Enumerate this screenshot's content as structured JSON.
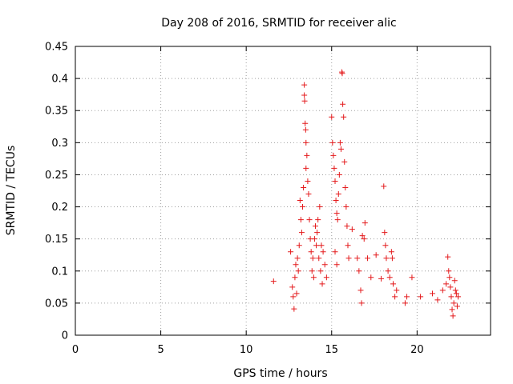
{
  "chart_data": {
    "type": "scatter",
    "title": "Day 208 of 2016, SRMTID for receiver alic",
    "xlabel": "GPS time / hours",
    "ylabel": "SRMTID / TECUs",
    "xlim": [
      0,
      24.3
    ],
    "ylim": [
      0,
      0.45
    ],
    "x_ticks": [
      0,
      5,
      10,
      15,
      20
    ],
    "x_tick_labels": [
      "0",
      "5",
      "10",
      "15",
      "20"
    ],
    "y_ticks": [
      0,
      0.05,
      0.1,
      0.15,
      0.2,
      0.25,
      0.3,
      0.35,
      0.4,
      0.45
    ],
    "y_tick_labels": [
      "0",
      "0.05",
      "0.1",
      "0.15",
      "0.2",
      "0.25",
      "0.3",
      "0.35",
      "0.4",
      "0.45"
    ],
    "grid": true,
    "marker": "+",
    "series": [
      {
        "name": "SRMTID",
        "color": "#e41a1c",
        "points": [
          [
            11.6,
            0.084
          ],
          [
            12.6,
            0.13
          ],
          [
            12.7,
            0.075
          ],
          [
            12.75,
            0.06
          ],
          [
            12.8,
            0.041
          ],
          [
            12.85,
            0.09
          ],
          [
            12.9,
            0.11
          ],
          [
            12.95,
            0.065
          ],
          [
            13.0,
            0.12
          ],
          [
            13.05,
            0.1
          ],
          [
            13.1,
            0.14
          ],
          [
            13.15,
            0.21
          ],
          [
            13.2,
            0.18
          ],
          [
            13.25,
            0.16
          ],
          [
            13.3,
            0.2
          ],
          [
            13.35,
            0.23
          ],
          [
            13.4,
            0.39
          ],
          [
            13.4,
            0.374
          ],
          [
            13.42,
            0.365
          ],
          [
            13.45,
            0.33
          ],
          [
            13.48,
            0.32
          ],
          [
            13.5,
            0.3
          ],
          [
            13.55,
            0.28
          ],
          [
            13.5,
            0.26
          ],
          [
            13.6,
            0.24
          ],
          [
            13.65,
            0.22
          ],
          [
            13.7,
            0.18
          ],
          [
            13.75,
            0.15
          ],
          [
            13.8,
            0.13
          ],
          [
            13.85,
            0.1
          ],
          [
            13.9,
            0.12
          ],
          [
            13.95,
            0.09
          ],
          [
            14.0,
            0.15
          ],
          [
            14.05,
            0.17
          ],
          [
            14.1,
            0.14
          ],
          [
            14.15,
            0.16
          ],
          [
            14.2,
            0.18
          ],
          [
            14.25,
            0.12
          ],
          [
            14.3,
            0.2
          ],
          [
            14.35,
            0.1
          ],
          [
            14.4,
            0.14
          ],
          [
            14.45,
            0.08
          ],
          [
            14.5,
            0.13
          ],
          [
            14.6,
            0.11
          ],
          [
            14.7,
            0.09
          ],
          [
            15.0,
            0.34
          ],
          [
            15.05,
            0.3
          ],
          [
            15.1,
            0.28
          ],
          [
            15.15,
            0.26
          ],
          [
            15.2,
            0.24
          ],
          [
            15.25,
            0.21
          ],
          [
            15.3,
            0.19
          ],
          [
            15.35,
            0.18
          ],
          [
            15.4,
            0.22
          ],
          [
            15.45,
            0.25
          ],
          [
            15.5,
            0.3
          ],
          [
            15.55,
            0.29
          ],
          [
            15.6,
            0.41
          ],
          [
            15.62,
            0.408
          ],
          [
            15.65,
            0.36
          ],
          [
            15.7,
            0.34
          ],
          [
            15.75,
            0.27
          ],
          [
            15.8,
            0.23
          ],
          [
            15.85,
            0.2
          ],
          [
            15.9,
            0.17
          ],
          [
            15.95,
            0.14
          ],
          [
            16.0,
            0.12
          ],
          [
            15.3,
            0.11
          ],
          [
            15.2,
            0.13
          ],
          [
            16.2,
            0.165
          ],
          [
            16.5,
            0.12
          ],
          [
            16.6,
            0.1
          ],
          [
            16.7,
            0.07
          ],
          [
            16.75,
            0.05
          ],
          [
            16.8,
            0.155
          ],
          [
            16.9,
            0.15
          ],
          [
            16.95,
            0.175
          ],
          [
            17.1,
            0.12
          ],
          [
            17.3,
            0.09
          ],
          [
            17.6,
            0.125
          ],
          [
            17.9,
            0.088
          ],
          [
            18.05,
            0.232
          ],
          [
            18.1,
            0.16
          ],
          [
            18.15,
            0.14
          ],
          [
            18.2,
            0.12
          ],
          [
            18.3,
            0.1
          ],
          [
            18.4,
            0.09
          ],
          [
            18.5,
            0.13
          ],
          [
            18.55,
            0.12
          ],
          [
            18.6,
            0.08
          ],
          [
            18.7,
            0.06
          ],
          [
            18.8,
            0.07
          ],
          [
            19.3,
            0.05
          ],
          [
            19.4,
            0.06
          ],
          [
            19.7,
            0.09
          ],
          [
            20.2,
            0.06
          ],
          [
            20.9,
            0.065
          ],
          [
            21.2,
            0.055
          ],
          [
            21.5,
            0.07
          ],
          [
            21.7,
            0.08
          ],
          [
            21.8,
            0.122
          ],
          [
            21.85,
            0.1
          ],
          [
            21.9,
            0.09
          ],
          [
            21.95,
            0.075
          ],
          [
            22.0,
            0.06
          ],
          [
            22.05,
            0.04
          ],
          [
            22.1,
            0.03
          ],
          [
            22.15,
            0.05
          ],
          [
            22.2,
            0.085
          ],
          [
            22.25,
            0.07
          ],
          [
            22.3,
            0.065
          ],
          [
            22.35,
            0.045
          ],
          [
            22.4,
            0.06
          ]
        ]
      }
    ]
  }
}
